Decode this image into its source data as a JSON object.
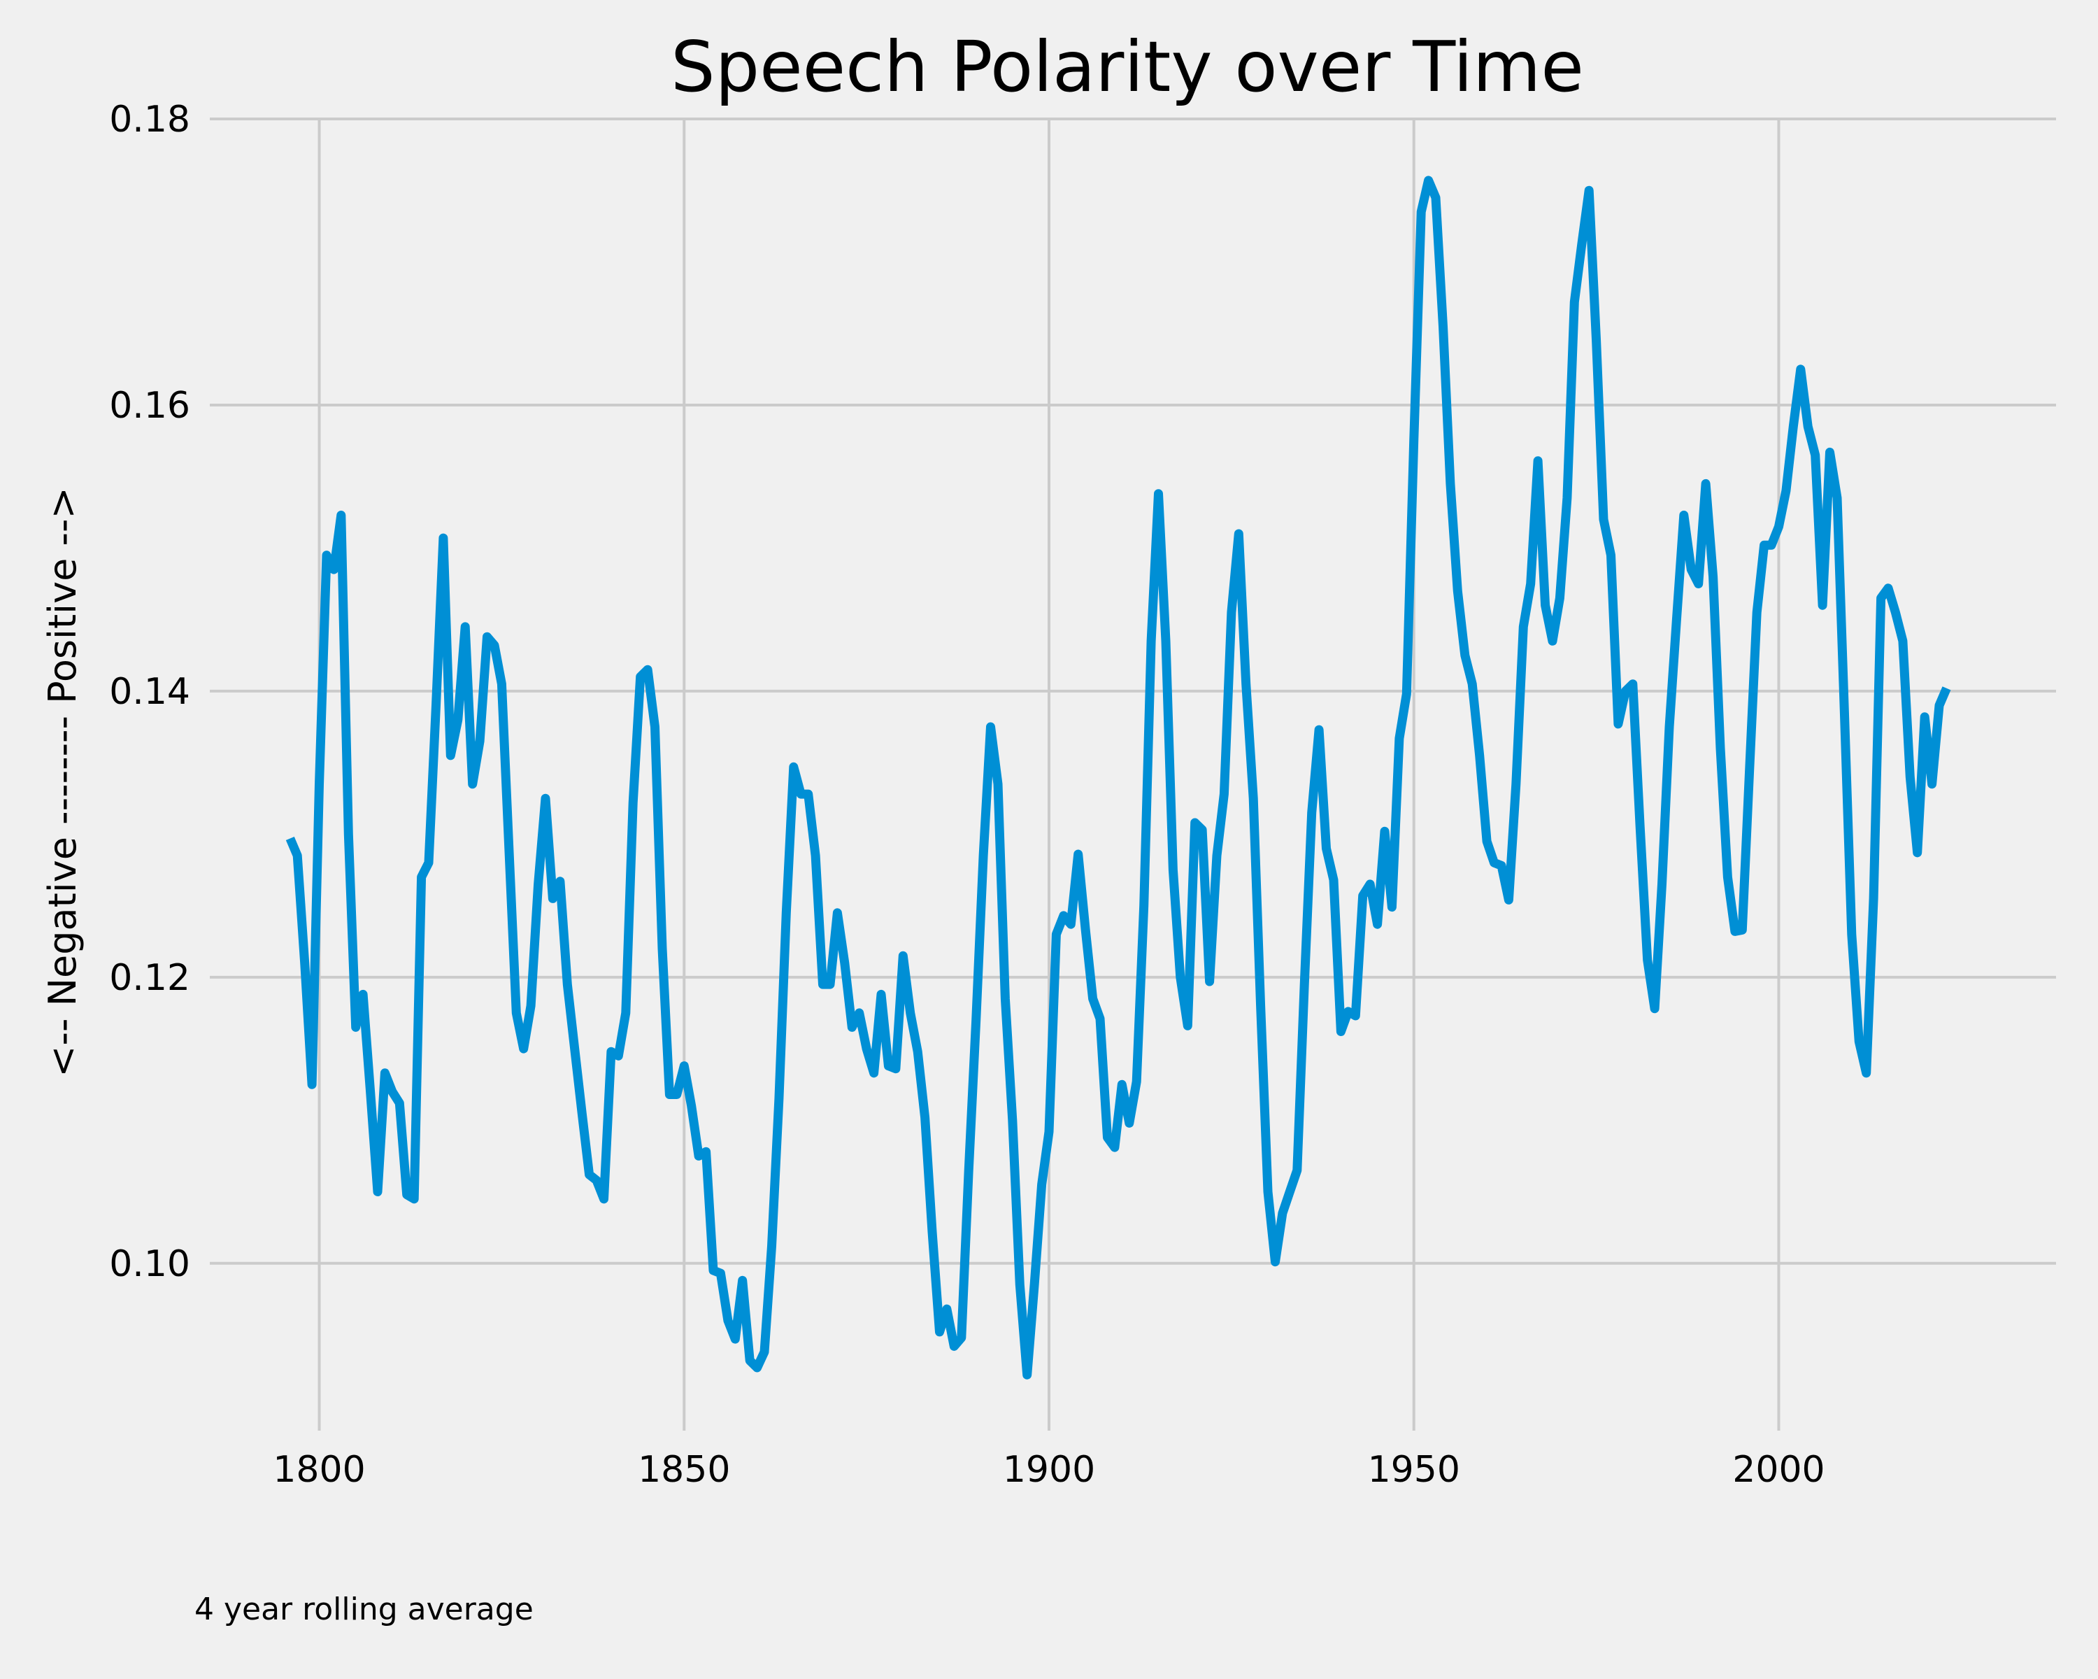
{
  "chart_data": {
    "type": "line",
    "title": "Speech Polarity over Time",
    "ylabel": "<-- Negative -------- Positive -->",
    "xlabel": "",
    "annotation": "4 year rolling average",
    "xlim": [
      1785,
      2038
    ],
    "ylim": [
      0.0883,
      0.18
    ],
    "xticks": [
      1800,
      1850,
      1900,
      1950,
      2000
    ],
    "xtick_labels": [
      "1800",
      "1850",
      "1900",
      "1950",
      "2000"
    ],
    "yticks": [
      0.1,
      0.12,
      0.14,
      0.16,
      0.18
    ],
    "ytick_labels": [
      "0.10",
      "0.12",
      "0.14",
      "0.16",
      "0.18"
    ],
    "grid": true,
    "line_color": "#008fd5",
    "background": "#f0f0f0",
    "grid_color": "#cbcbcb",
    "series": [
      {
        "x": [
          1796,
          1797,
          1798,
          1799,
          1800,
          1801,
          1802,
          1803,
          1804,
          1805,
          1806,
          1807,
          1808,
          1809,
          1810,
          1811,
          1812,
          1813,
          1814,
          1815,
          1816,
          1817,
          1818,
          1819,
          1820,
          1821,
          1822,
          1823,
          1824,
          1825,
          1826,
          1827,
          1828,
          1829,
          1830,
          1831,
          1832,
          1833,
          1834,
          1835,
          1836,
          1837,
          1838,
          1839,
          1840,
          1841,
          1842,
          1843,
          1844,
          1845,
          1846,
          1847,
          1848,
          1849,
          1850,
          1851,
          1852,
          1853,
          1854,
          1855,
          1856,
          1857,
          1858,
          1859,
          1860,
          1861,
          1862,
          1863,
          1864,
          1865,
          1866,
          1867,
          1868,
          1869,
          1870,
          1871,
          1872,
          1873,
          1874,
          1875,
          1876,
          1877,
          1878,
          1879,
          1880,
          1881,
          1882,
          1883,
          1884,
          1885,
          1886,
          1887,
          1888,
          1889,
          1890,
          1891,
          1892,
          1893,
          1894,
          1895,
          1896,
          1897,
          1898,
          1899,
          1900,
          1901,
          1902,
          1903,
          1904,
          1905,
          1906,
          1907,
          1908,
          1909,
          1910,
          1911,
          1912,
          1913,
          1914,
          1915,
          1916,
          1917,
          1918,
          1919,
          1920,
          1921,
          1922,
          1923,
          1924,
          1925,
          1926,
          1927,
          1928,
          1929,
          1930,
          1931,
          1932,
          1933,
          1934,
          1935,
          1936,
          1937,
          1938,
          1939,
          1940,
          1941,
          1942,
          1943,
          1944,
          1945,
          1946,
          1947,
          1948,
          1949,
          1950,
          1951,
          1952,
          1953,
          1954,
          1955,
          1956,
          1957,
          1958,
          1959,
          1960,
          1961,
          1962,
          1963,
          1964,
          1965,
          1966,
          1967,
          1968,
          1969,
          1970,
          1971,
          1972,
          1973,
          1974,
          1975,
          1976,
          1977,
          1978,
          1979,
          1980,
          1981,
          1982,
          1983,
          1984,
          1985,
          1986,
          1987,
          1988,
          1989,
          1990,
          1991,
          1992,
          1993,
          1994,
          1995,
          1996,
          1997,
          1998,
          1999,
          2000,
          2001,
          2002,
          2003,
          2004,
          2005,
          2006,
          2007,
          2008,
          2009,
          2010,
          2011,
          2012,
          2013,
          2014,
          2015,
          2016,
          2017,
          2018,
          2019,
          2020,
          2021,
          2022,
          2023
        ],
        "values": [
          0.1297,
          0.1285,
          0.121,
          0.1125,
          0.1335,
          0.1495,
          0.1485,
          0.1523,
          0.13,
          0.1165,
          0.1188,
          0.112,
          0.105,
          0.1133,
          0.112,
          0.1112,
          0.1048,
          0.1045,
          0.127,
          0.128,
          0.139,
          0.1507,
          0.1355,
          0.138,
          0.1445,
          0.1335,
          0.1365,
          0.1438,
          0.1432,
          0.1405,
          0.129,
          0.1175,
          0.115,
          0.118,
          0.1265,
          0.1325,
          0.1255,
          0.1267,
          0.1195,
          0.115,
          0.1105,
          0.1062,
          0.1058,
          0.1045,
          0.1148,
          0.1145,
          0.1175,
          0.1322,
          0.141,
          0.1415,
          0.1375,
          0.122,
          0.1118,
          0.1118,
          0.1138,
          0.111,
          0.1075,
          0.1078,
          0.0995,
          0.0993,
          0.096,
          0.0947,
          0.0988,
          0.0932,
          0.0927,
          0.0938,
          0.1012,
          0.1115,
          0.1245,
          0.1347,
          0.1328,
          0.1328,
          0.1285,
          0.1195,
          0.1195,
          0.1245,
          0.121,
          0.1165,
          0.1175,
          0.115,
          0.1133,
          0.1188,
          0.1138,
          0.1136,
          0.1215,
          0.1175,
          0.1148,
          0.1102,
          0.1022,
          0.0952,
          0.0968,
          0.0942,
          0.0948,
          0.1065,
          0.117,
          0.1285,
          0.1375,
          0.1335,
          0.1185,
          0.11,
          0.0985,
          0.0922,
          0.0985,
          0.1055,
          0.1092,
          0.123,
          0.1243,
          0.1237,
          0.1286,
          0.1233,
          0.1185,
          0.1171,
          0.1088,
          0.1081,
          0.1125,
          0.1098,
          0.1127,
          0.125,
          0.1435,
          0.1538,
          0.1435,
          0.1275,
          0.12,
          0.1166,
          0.1308,
          0.1303,
          0.1197,
          0.1285,
          0.1328,
          0.1455,
          0.151,
          0.1405,
          0.1325,
          0.118,
          0.105,
          0.1001,
          0.1035,
          0.105,
          0.1065,
          0.1195,
          0.1315,
          0.1373,
          0.129,
          0.1268,
          0.1162,
          0.1176,
          0.1173,
          0.1257,
          0.1265,
          0.1237,
          0.1302,
          0.1249,
          0.1367,
          0.1398,
          0.1575,
          0.1735,
          0.1757,
          0.1745,
          0.1655,
          0.1545,
          0.147,
          0.1425,
          0.1405,
          0.1355,
          0.1295,
          0.128,
          0.1278,
          0.1254,
          0.1335,
          0.1445,
          0.1475,
          0.1561,
          0.146,
          0.1435,
          0.1465,
          0.1535,
          0.1672,
          0.1712,
          0.175,
          0.1645,
          0.152,
          0.1495,
          0.1377,
          0.14,
          0.1405,
          0.1305,
          0.1212,
          0.1178,
          0.1265,
          0.1375,
          0.145,
          0.1523,
          0.1485,
          0.1475,
          0.1545,
          0.148,
          0.136,
          0.127,
          0.1232,
          0.1233,
          0.1345,
          0.1455,
          0.1502,
          0.1502,
          0.1515,
          0.154,
          0.1585,
          0.1625,
          0.1585,
          0.1565,
          0.146,
          0.1567,
          0.1535,
          0.1385,
          0.123,
          0.1155,
          0.1133,
          0.1255,
          0.1465,
          0.1472,
          0.1455,
          0.1435,
          0.134,
          0.1287,
          0.1382,
          0.1335,
          0.139,
          0.1402
        ]
      }
    ]
  }
}
